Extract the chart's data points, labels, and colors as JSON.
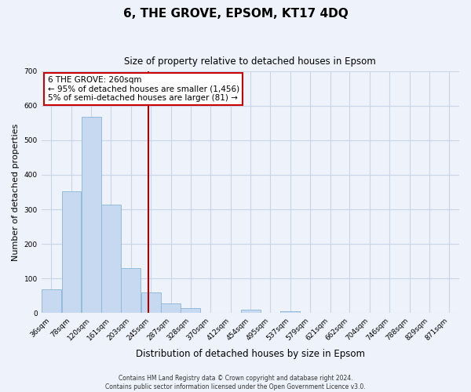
{
  "title": "6, THE GROVE, EPSOM, KT17 4DQ",
  "subtitle": "Size of property relative to detached houses in Epsom",
  "xlabel": "Distribution of detached houses by size in Epsom",
  "ylabel": "Number of detached properties",
  "bin_labels": [
    "36sqm",
    "78sqm",
    "120sqm",
    "161sqm",
    "203sqm",
    "245sqm",
    "287sqm",
    "328sqm",
    "370sqm",
    "412sqm",
    "454sqm",
    "495sqm",
    "537sqm",
    "579sqm",
    "621sqm",
    "662sqm",
    "704sqm",
    "746sqm",
    "788sqm",
    "829sqm",
    "871sqm"
  ],
  "bar_heights": [
    68,
    352,
    567,
    314,
    130,
    60,
    28,
    14,
    0,
    0,
    10,
    0,
    5,
    0,
    0,
    0,
    0,
    0,
    0,
    0,
    0
  ],
  "bar_color": "#c6d9f1",
  "bar_edge_color": "#8ab4d8",
  "vline_color": "#aa0000",
  "bin_edges_values": [
    36,
    78,
    120,
    161,
    203,
    245,
    287,
    328,
    370,
    412,
    454,
    495,
    537,
    579,
    621,
    662,
    704,
    746,
    788,
    829,
    871
  ],
  "bin_width": 42,
  "vline_x": 260,
  "ylim": [
    0,
    700
  ],
  "yticks": [
    0,
    100,
    200,
    300,
    400,
    500,
    600,
    700
  ],
  "annotation_line1": "6 THE GROVE: 260sqm",
  "annotation_line2": "← 95% of detached houses are smaller (1,456)",
  "annotation_line3": "5% of semi-detached houses are larger (81) →",
  "annotation_box_facecolor": "#ffffff",
  "annotation_box_edgecolor": "#cc0000",
  "footer_line1": "Contains HM Land Registry data © Crown copyright and database right 2024.",
  "footer_line2": "Contains public sector information licensed under the Open Government Licence v3.0.",
  "bg_color": "#eef2fa",
  "grid_color": "#c8d4e8",
  "title_fontsize": 11,
  "subtitle_fontsize": 8.5,
  "ylabel_fontsize": 8,
  "xlabel_fontsize": 8.5,
  "tick_fontsize": 6.5,
  "annot_fontsize": 7.5,
  "footer_fontsize": 5.5
}
